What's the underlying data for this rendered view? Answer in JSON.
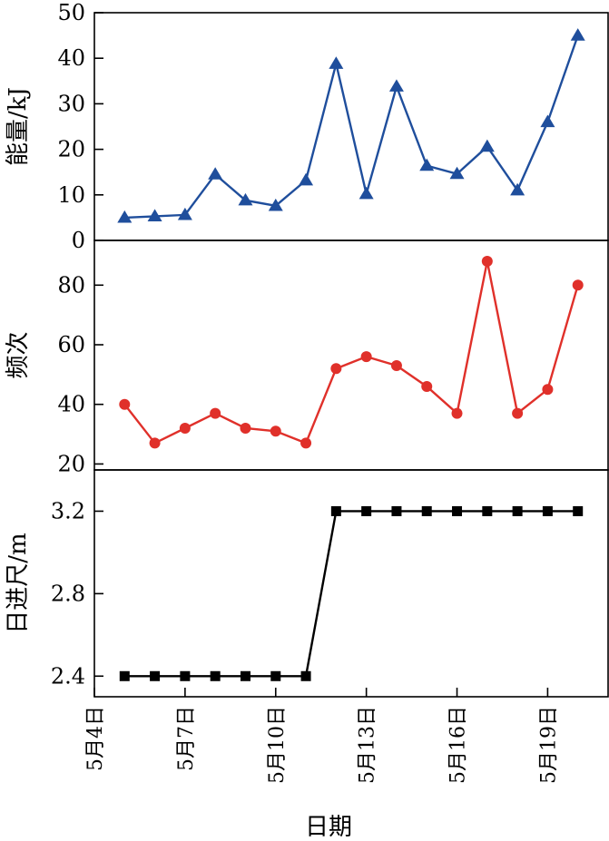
{
  "chart_data": [
    {
      "type": "line",
      "ylabel": "能量/kJ",
      "ylim": [
        0,
        50
      ],
      "yticks": [
        0,
        10,
        20,
        30,
        40,
        50
      ],
      "ytick_labels": [
        "0",
        "10",
        "20",
        "30",
        "40",
        "50"
      ],
      "series": [
        {
          "color": "#1f4e9c",
          "marker": "triangle",
          "points": [
            {
              "x": "5月5日",
              "y": 5
            },
            {
              "x": "5月6日",
              "y": 5.3
            },
            {
              "x": "5月7日",
              "y": 5.6
            },
            {
              "x": "5月8日",
              "y": 14.5
            },
            {
              "x": "5月9日",
              "y": 8.8
            },
            {
              "x": "5月10日",
              "y": 7.6
            },
            {
              "x": "5月11日",
              "y": 13.2
            },
            {
              "x": "5月12日",
              "y": 38.8
            },
            {
              "x": "5月13日",
              "y": 10.2
            },
            {
              "x": "5月14日",
              "y": 33.8
            },
            {
              "x": "5月15日",
              "y": 16.4
            },
            {
              "x": "5月16日",
              "y": 14.6
            },
            {
              "x": "5月17日",
              "y": 20.6
            },
            {
              "x": "5月18日",
              "y": 11
            },
            {
              "x": "5月19日",
              "y": 26
            },
            {
              "x": "5月20日",
              "y": 45
            }
          ]
        }
      ]
    },
    {
      "type": "line",
      "ylabel": "频次",
      "ylim": [
        18,
        95
      ],
      "yticks": [
        20,
        40,
        60,
        80
      ],
      "ytick_labels": [
        "20",
        "40",
        "60",
        "80"
      ],
      "series": [
        {
          "color": "#e0302a",
          "marker": "circle",
          "points": [
            {
              "x": "5月5日",
              "y": 40
            },
            {
              "x": "5月6日",
              "y": 27
            },
            {
              "x": "5月7日",
              "y": 32
            },
            {
              "x": "5月8日",
              "y": 37
            },
            {
              "x": "5月9日",
              "y": 32
            },
            {
              "x": "5月10日",
              "y": 31
            },
            {
              "x": "5月11日",
              "y": 27
            },
            {
              "x": "5月12日",
              "y": 52
            },
            {
              "x": "5月13日",
              "y": 56
            },
            {
              "x": "5月14日",
              "y": 53
            },
            {
              "x": "5月15日",
              "y": 46
            },
            {
              "x": "5月16日",
              "y": 37
            },
            {
              "x": "5月17日",
              "y": 88
            },
            {
              "x": "5月18日",
              "y": 37
            },
            {
              "x": "5月19日",
              "y": 45
            },
            {
              "x": "5月20日",
              "y": 80
            }
          ]
        }
      ]
    },
    {
      "type": "line",
      "ylabel": "日进尺/m",
      "ylim": [
        2.3,
        3.4
      ],
      "yticks": [
        2.4,
        2.8,
        3.2
      ],
      "ytick_labels": [
        "2.4",
        "2.8",
        "3.2"
      ],
      "series": [
        {
          "color": "#000000",
          "marker": "square",
          "points": [
            {
              "x": "5月5日",
              "y": 2.4
            },
            {
              "x": "5月6日",
              "y": 2.4
            },
            {
              "x": "5月7日",
              "y": 2.4
            },
            {
              "x": "5月8日",
              "y": 2.4
            },
            {
              "x": "5月9日",
              "y": 2.4
            },
            {
              "x": "5月10日",
              "y": 2.4
            },
            {
              "x": "5月11日",
              "y": 2.4
            },
            {
              "x": "5月12日",
              "y": 3.2
            },
            {
              "x": "5月13日",
              "y": 3.2
            },
            {
              "x": "5月14日",
              "y": 3.2
            },
            {
              "x": "5月15日",
              "y": 3.2
            },
            {
              "x": "5月16日",
              "y": 3.2
            },
            {
              "x": "5月17日",
              "y": 3.2
            },
            {
              "x": "5月18日",
              "y": 3.2
            },
            {
              "x": "5月19日",
              "y": 3.2
            },
            {
              "x": "5月20日",
              "y": 3.2
            }
          ]
        }
      ]
    }
  ],
  "shared_x": {
    "xlabel": "日期",
    "xlim": [
      "5月4日",
      "5月21日"
    ],
    "xticks": [
      "5月4日",
      "5月7日",
      "5月10日",
      "5月13日",
      "5月16日",
      "5月19日"
    ]
  }
}
